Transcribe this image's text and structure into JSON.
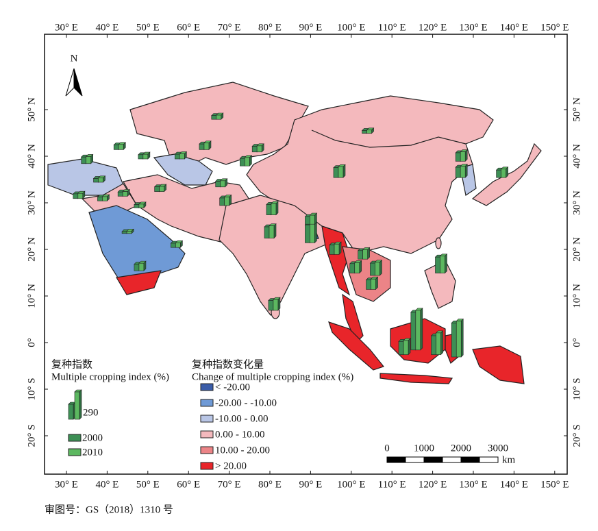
{
  "map": {
    "lon_ticks": [
      {
        "value": 30,
        "label": "30° E"
      },
      {
        "value": 40,
        "label": "40° E"
      },
      {
        "value": 50,
        "label": "50° E"
      },
      {
        "value": 60,
        "label": "60° E"
      },
      {
        "value": 70,
        "label": "70° E"
      },
      {
        "value": 80,
        "label": "80° E"
      },
      {
        "value": 90,
        "label": "90° E"
      },
      {
        "value": 100,
        "label": "100° E"
      },
      {
        "value": 110,
        "label": "110° E"
      },
      {
        "value": 120,
        "label": "120° E"
      },
      {
        "value": 130,
        "label": "130° E"
      },
      {
        "value": 140,
        "label": "140° E"
      },
      {
        "value": 150,
        "label": "150° E"
      }
    ],
    "lat_ticks": [
      {
        "value": 50,
        "label": "50° N"
      },
      {
        "value": 40,
        "label": "40° N"
      },
      {
        "value": 30,
        "label": "30° N"
      },
      {
        "value": 20,
        "label": "20° N"
      },
      {
        "value": 10,
        "label": "10° N"
      },
      {
        "value": 0,
        "label": "0°"
      },
      {
        "value": -10,
        "label": "10° S"
      },
      {
        "value": -20,
        "label": "20° S"
      }
    ],
    "north_label": "N",
    "legend_index": {
      "title_cn": "复种指数",
      "title_en": "Multiple cropping index (%)",
      "reference": 290,
      "series": [
        {
          "name": "2000",
          "color": "#3d8f55"
        },
        {
          "name": "2010",
          "color": "#5cb860"
        }
      ]
    },
    "legend_change": {
      "title_cn": "复种指数变化量",
      "title_en": "Change of multiple cropping index (%)",
      "classes": [
        {
          "label": "< -20.00",
          "color": "#3a5ca8"
        },
        {
          "label": "-20.00 - -10.00",
          "color": "#6f9ad6"
        },
        {
          "label": "-10.00 - 0.00",
          "color": "#b9c6e6"
        },
        {
          "label": "0.00 - 10.00",
          "color": "#f4b9bd"
        },
        {
          "label": "10.00 - 20.00",
          "color": "#ec8487"
        },
        {
          "label": "> 20.00",
          "color": "#e8252a"
        }
      ]
    },
    "scale_bar": {
      "ticks": [
        0,
        1000,
        2000,
        3000
      ],
      "unit": "km"
    },
    "bars": [
      {
        "lon": 67,
        "lat": 48.5,
        "values": [
          40,
          45
        ]
      },
      {
        "lon": 104,
        "lat": 45.5,
        "values": [
          30,
          35
        ]
      },
      {
        "lon": 97,
        "lat": 36,
        "values": [
          105,
          115
        ]
      },
      {
        "lon": 64,
        "lat": 42,
        "values": [
          60,
          70
        ]
      },
      {
        "lon": 77,
        "lat": 41.5,
        "values": [
          60,
          65
        ]
      },
      {
        "lon": 74,
        "lat": 38.5,
        "values": [
          80,
          90
        ]
      },
      {
        "lon": 58,
        "lat": 40,
        "values": [
          50,
          55
        ]
      },
      {
        "lon": 68,
        "lat": 34,
        "values": [
          60,
          65
        ]
      },
      {
        "lon": 69,
        "lat": 30,
        "values": [
          80,
          90
        ]
      },
      {
        "lon": 53,
        "lat": 33,
        "values": [
          50,
          55
        ]
      },
      {
        "lon": 44,
        "lat": 32,
        "values": [
          45,
          50
        ]
      },
      {
        "lon": 38,
        "lat": 35,
        "values": [
          40,
          45
        ]
      },
      {
        "lon": 35,
        "lat": 39,
        "values": [
          70,
          75
        ]
      },
      {
        "lon": 43,
        "lat": 42,
        "values": [
          50,
          55
        ]
      },
      {
        "lon": 49,
        "lat": 40,
        "values": [
          45,
          50
        ]
      },
      {
        "lon": 33,
        "lat": 31.5,
        "values": [
          50,
          55
        ]
      },
      {
        "lon": 39,
        "lat": 31,
        "values": [
          40,
          45
        ]
      },
      {
        "lon": 45,
        "lat": 24,
        "values": [
          20,
          25
        ]
      },
      {
        "lon": 48,
        "lat": 29.5,
        "values": [
          35,
          40
        ]
      },
      {
        "lon": 57,
        "lat": 21,
        "values": [
          45,
          50
        ]
      },
      {
        "lon": 48,
        "lat": 16,
        "values": [
          70,
          80
        ]
      },
      {
        "lon": 80,
        "lat": 23,
        "values": [
          120,
          130
        ]
      },
      {
        "lon": 80.5,
        "lat": 28,
        "values": [
          110,
          120
        ]
      },
      {
        "lon": 81,
        "lat": 7.5,
        "values": [
          105,
          115
        ]
      },
      {
        "lon": 90,
        "lat": 22,
        "values": [
          190,
          200
        ]
      },
      {
        "lon": 90,
        "lat": 26,
        "values": [
          80,
          95
        ]
      },
      {
        "lon": 96,
        "lat": 19.5,
        "values": [
          100,
          110
        ]
      },
      {
        "lon": 103,
        "lat": 18.5,
        "values": [
          90,
          100
        ]
      },
      {
        "lon": 101,
        "lat": 15.5,
        "values": [
          100,
          110
        ]
      },
      {
        "lon": 106,
        "lat": 15,
        "values": [
          130,
          140
        ]
      },
      {
        "lon": 105,
        "lat": 12,
        "values": [
          100,
          110
        ]
      },
      {
        "lon": 122,
        "lat": 15.5,
        "values": [
          170,
          180
        ]
      },
      {
        "lon": 113,
        "lat": -2,
        "values": [
          140,
          150
        ]
      },
      {
        "lon": 116,
        "lat": -1,
        "values": [
          400,
          420
        ]
      },
      {
        "lon": 121,
        "lat": -2,
        "values": [
          200,
          230
        ]
      },
      {
        "lon": 126,
        "lat": -2.5,
        "values": [
          360,
          380
        ]
      },
      {
        "lon": 127,
        "lat": 39.5,
        "values": [
          90,
          100
        ]
      },
      {
        "lon": 127,
        "lat": 36,
        "values": [
          110,
          120
        ]
      },
      {
        "lon": 137,
        "lat": 36,
        "values": [
          80,
          90
        ]
      }
    ]
  },
  "footer": "审图号：GS（2018）1310 号"
}
